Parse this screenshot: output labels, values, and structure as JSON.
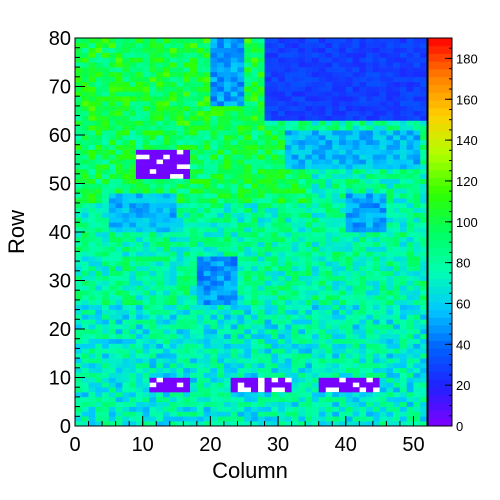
{
  "chart_data": {
    "type": "heatmap",
    "title": "",
    "xlabel": "Column",
    "ylabel": "Row",
    "xlim": [
      0,
      52
    ],
    "ylim": [
      0,
      80
    ],
    "zlim": [
      0,
      190
    ],
    "x_ticks": [
      "0",
      "10",
      "20",
      "30",
      "40",
      "50"
    ],
    "y_ticks": [
      "0",
      "10",
      "20",
      "30",
      "40",
      "50",
      "60",
      "70",
      "80"
    ],
    "z_ticks": [
      "0",
      "20",
      "40",
      "60",
      "80",
      "100",
      "120",
      "140",
      "160",
      "180"
    ],
    "colormap": [
      "#8000ff",
      "#2020ff",
      "#0060ff",
      "#00c8ff",
      "#00ffb0",
      "#00ff60",
      "#30ff00",
      "#b0ff00",
      "#ffd000",
      "#ff8000",
      "#ff0000"
    ],
    "grid": false,
    "description_of_values": "Mostly 60-110 counts; top-right region (columns 28-51, rows 63-80) near 20-30; several dark-blue blocks near 40-55; purple/white empty clusters near 0"
  }
}
